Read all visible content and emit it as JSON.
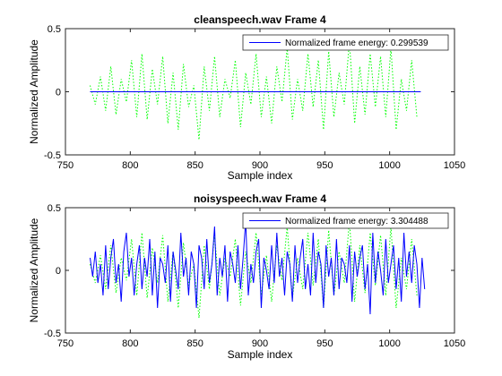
{
  "chart_data": [
    {
      "type": "line",
      "title": "cleanspeech.wav Frame 4",
      "xlabel": "Sample index",
      "ylabel": "Normalized Amplitude",
      "xlim": [
        750,
        1050
      ],
      "ylim": [
        -0.5,
        0.5
      ],
      "xticks": [
        750,
        800,
        850,
        900,
        950,
        1000,
        1050
      ],
      "yticks": [
        -0.5,
        0,
        0.5
      ],
      "grid": false,
      "legend_position": "top-right",
      "series": [
        {
          "name": "Normalized frame energy: 0.299539",
          "color": "#0000ff",
          "style": "solid",
          "x": [
            769,
            1024
          ],
          "y": [
            0,
            0
          ]
        },
        {
          "color": "#00ff00",
          "style": "dotted",
          "x_start": 769,
          "x_step": 4,
          "y": [
            0.05,
            -0.1,
            0.12,
            -0.15,
            0.2,
            -0.18,
            0.1,
            -0.08,
            0.25,
            -0.2,
            0.3,
            -0.22,
            0.18,
            -0.1,
            0.28,
            -0.25,
            0.15,
            -0.3,
            0.22,
            -0.12,
            0.05,
            -0.38,
            0.2,
            -0.15,
            0.28,
            -0.2,
            0.1,
            -0.05,
            0.25,
            -0.28,
            0.15,
            -0.1,
            0.3,
            -0.2,
            0.12,
            -0.25,
            0.2,
            -0.08,
            0.35,
            -0.22,
            0.1,
            -0.15,
            0.3,
            -0.12,
            0.25,
            -0.3,
            0.32,
            -0.2,
            0.15,
            -0.1,
            0.4,
            -0.25,
            0.2,
            -0.18,
            0.3,
            -0.12,
            0.28,
            -0.2,
            0.35,
            -0.3,
            0.1,
            -0.15,
            0.25,
            -0.2
          ]
        }
      ]
    },
    {
      "type": "line",
      "title": "noisyspeech.wav Frame 4",
      "xlabel": "Sample index",
      "ylabel": "Normalized Amplitude",
      "xlim": [
        750,
        1050
      ],
      "ylim": [
        -0.5,
        0.5
      ],
      "xticks": [
        750,
        800,
        850,
        900,
        950,
        1000,
        1050
      ],
      "yticks": [
        -0.5,
        0,
        0.5
      ],
      "grid": false,
      "legend_position": "top-right",
      "series": [
        {
          "name": "Normalized frame energy: 3.304488",
          "color": "#0000ff",
          "style": "solid",
          "x_start": 769,
          "x_step": 2,
          "y": [
            0.1,
            -0.05,
            0.15,
            -0.1,
            0.05,
            -0.2,
            0.2,
            -0.15,
            0.1,
            0.25,
            -0.1,
            0.05,
            -0.25,
            0.15,
            0.3,
            -0.05,
            0.1,
            -0.2,
            0.05,
            0.2,
            -0.15,
            0.1,
            -0.05,
            0.25,
            -0.2,
            0.15,
            -0.3,
            0.1,
            0.05,
            -0.1,
            0.2,
            -0.25,
            0.15,
            0.0,
            -0.15,
            0.3,
            -0.05,
            0.1,
            -0.2,
            0.15,
            0.05,
            -0.3,
            0.2,
            0.1,
            -0.15,
            0.25,
            -0.1,
            0.05,
            0.35,
            -0.2,
            0.1,
            -0.05,
            0.2,
            -0.25,
            0.15,
            0.05,
            -0.1,
            0.2,
            -0.15,
            0.1,
            0.4,
            -0.2,
            0.05,
            -0.1,
            0.15,
            0.25,
            -0.3,
            0.1,
            0.0,
            -0.15,
            0.2,
            -0.1,
            0.3,
            -0.05,
            0.1,
            -0.2,
            0.15,
            0.05,
            -0.25,
            0.2,
            -0.1,
            0.1,
            0.25,
            -0.15,
            0.05,
            -0.2,
            0.3,
            -0.1,
            0.15,
            0.05,
            -0.3,
            0.2,
            -0.05,
            0.1,
            -0.2,
            0.25,
            -0.15,
            0.1,
            0.05,
            -0.1,
            0.2,
            -0.25,
            0.15,
            -0.05,
            0.1,
            0.2,
            -0.15,
            0.05,
            -0.35,
            0.3,
            -0.1,
            0.15,
            0.0,
            -0.2,
            0.25,
            -0.1,
            0.05,
            0.2,
            -0.15,
            0.1,
            -0.25,
            0.3,
            -0.05,
            0.15,
            -0.1,
            0.2,
            0.05,
            -0.3,
            0.1,
            -0.15
          ]
        },
        {
          "color": "#00ff00",
          "style": "dotted",
          "x_start": 769,
          "x_step": 4,
          "y": [
            0.05,
            -0.1,
            0.12,
            -0.15,
            0.2,
            -0.18,
            0.1,
            -0.08,
            0.25,
            -0.2,
            0.3,
            -0.22,
            0.18,
            -0.1,
            0.28,
            -0.25,
            0.15,
            -0.3,
            0.22,
            -0.12,
            0.05,
            -0.38,
            0.2,
            -0.15,
            0.28,
            -0.2,
            0.1,
            -0.05,
            0.25,
            -0.28,
            0.15,
            -0.1,
            0.3,
            -0.2,
            0.12,
            -0.25,
            0.2,
            -0.08,
            0.35,
            -0.22,
            0.1,
            -0.15,
            0.3,
            -0.12,
            0.25,
            -0.3,
            0.32,
            -0.2,
            0.15,
            -0.1,
            0.4,
            -0.25,
            0.2,
            -0.18,
            0.3,
            -0.12,
            0.28,
            -0.2,
            0.35,
            -0.3,
            0.1,
            -0.15,
            0.25,
            -0.2
          ]
        }
      ]
    }
  ]
}
